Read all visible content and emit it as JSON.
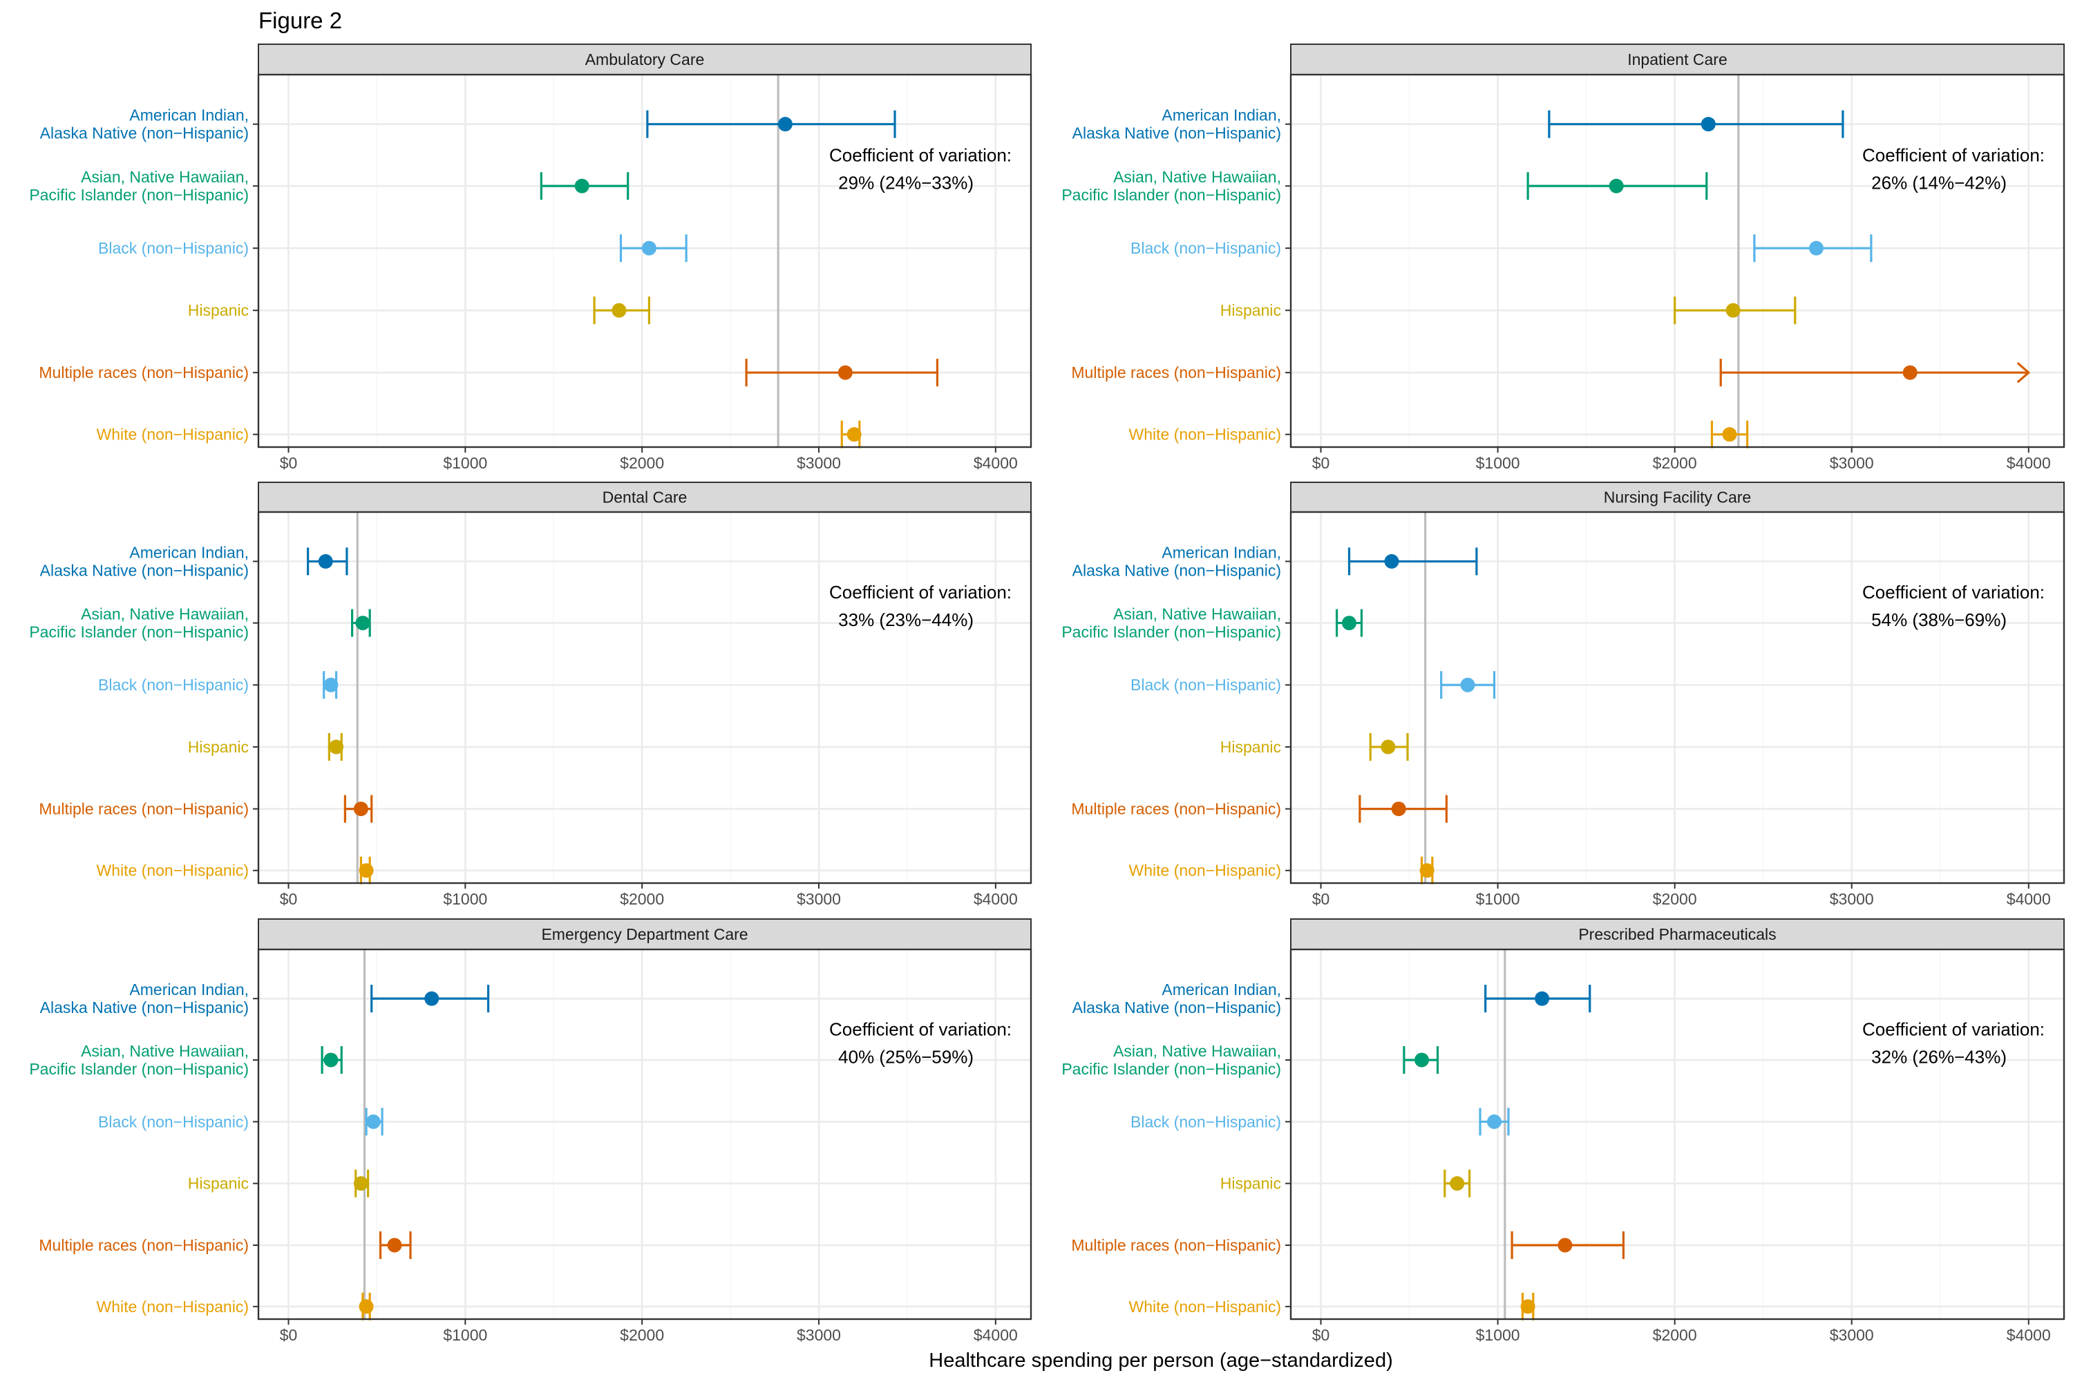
{
  "figure_title": "Figure 2",
  "x_axis_label": "Healthcare spending per person (age−standardized)",
  "x_ticks": [
    {
      "value": 0,
      "label": "$0"
    },
    {
      "value": 1000,
      "label": "$1000"
    },
    {
      "value": 2000,
      "label": "$2000"
    },
    {
      "value": 3000,
      "label": "$3000"
    },
    {
      "value": 4000,
      "label": "$4000"
    }
  ],
  "cv_heading": "Coefficient of variation:",
  "categories": [
    {
      "label_lines": [
        "American Indian,",
        "Alaska Native (non−Hispanic)"
      ],
      "color": "#0072B2"
    },
    {
      "label_lines": [
        "Asian, Native Hawaiian,",
        "Pacific Islander (non−Hispanic)"
      ],
      "color": "#009E73"
    },
    {
      "label_lines": [
        "Black (non−Hispanic)"
      ],
      "color": "#56B4E9"
    },
    {
      "label_lines": [
        "Hispanic"
      ],
      "color": "#CCAA00"
    },
    {
      "label_lines": [
        "Multiple races (non−Hispanic)"
      ],
      "color": "#D55E00"
    },
    {
      "label_lines": [
        "White (non−Hispanic)"
      ],
      "color": "#E69F00"
    }
  ],
  "chart_data": [
    {
      "type": "scatter",
      "title": "Ambulatory Care",
      "xlim": [
        -170,
        4200
      ],
      "reference_line": 2770,
      "cv_value": "29% (24%−33%)",
      "estimates": [
        2810,
        1660,
        2040,
        1870,
        3150,
        3200
      ],
      "lower": [
        2030,
        1430,
        1880,
        1730,
        2590,
        3130
      ],
      "upper": [
        3430,
        1920,
        2250,
        2040,
        3670,
        3230
      ],
      "upper_truncated": [
        false,
        false,
        false,
        false,
        false,
        false
      ]
    },
    {
      "type": "scatter",
      "title": "Inpatient Care",
      "xlim": [
        -170,
        4200
      ],
      "reference_line": 2360,
      "cv_value": "26% (14%−42%)",
      "estimates": [
        2190,
        1670,
        2800,
        2330,
        3330,
        2310
      ],
      "lower": [
        1290,
        1170,
        2450,
        2000,
        2260,
        2210
      ],
      "upper": [
        2950,
        2180,
        3110,
        2680,
        4000,
        2410
      ],
      "upper_truncated": [
        false,
        false,
        false,
        false,
        true,
        false
      ]
    },
    {
      "type": "scatter",
      "title": "Dental Care",
      "xlim": [
        -170,
        4200
      ],
      "reference_line": 390,
      "cv_value": "33% (23%−44%)",
      "estimates": [
        210,
        420,
        240,
        270,
        410,
        440
      ],
      "lower": [
        110,
        360,
        200,
        230,
        320,
        410
      ],
      "upper": [
        330,
        460,
        270,
        300,
        470,
        460
      ],
      "upper_truncated": [
        false,
        false,
        false,
        false,
        false,
        false
      ]
    },
    {
      "type": "scatter",
      "title": "Nursing Facility Care",
      "xlim": [
        -170,
        4200
      ],
      "reference_line": 590,
      "cv_value": "54% (38%−69%)",
      "estimates": [
        400,
        160,
        830,
        380,
        440,
        600
      ],
      "lower": [
        160,
        90,
        680,
        280,
        220,
        570
      ],
      "upper": [
        880,
        230,
        980,
        490,
        710,
        630
      ],
      "upper_truncated": [
        false,
        false,
        false,
        false,
        false,
        false
      ]
    },
    {
      "type": "scatter",
      "title": "Emergency Department Care",
      "xlim": [
        -170,
        4200
      ],
      "reference_line": 430,
      "cv_value": "40% (25%−59%)",
      "estimates": [
        810,
        240,
        480,
        410,
        600,
        440
      ],
      "lower": [
        470,
        190,
        440,
        380,
        520,
        420
      ],
      "upper": [
        1130,
        300,
        530,
        450,
        690,
        460
      ],
      "upper_truncated": [
        false,
        false,
        false,
        false,
        false,
        false
      ]
    },
    {
      "type": "scatter",
      "title": "Prescribed Pharmaceuticals",
      "xlim": [
        -170,
        4200
      ],
      "reference_line": 1040,
      "cv_value": "32% (26%−43%)",
      "estimates": [
        1250,
        570,
        980,
        770,
        1380,
        1170
      ],
      "lower": [
        930,
        470,
        900,
        700,
        1080,
        1140
      ],
      "upper": [
        1520,
        660,
        1060,
        840,
        1710,
        1200
      ],
      "upper_truncated": [
        false,
        false,
        false,
        false,
        false,
        false
      ]
    }
  ]
}
